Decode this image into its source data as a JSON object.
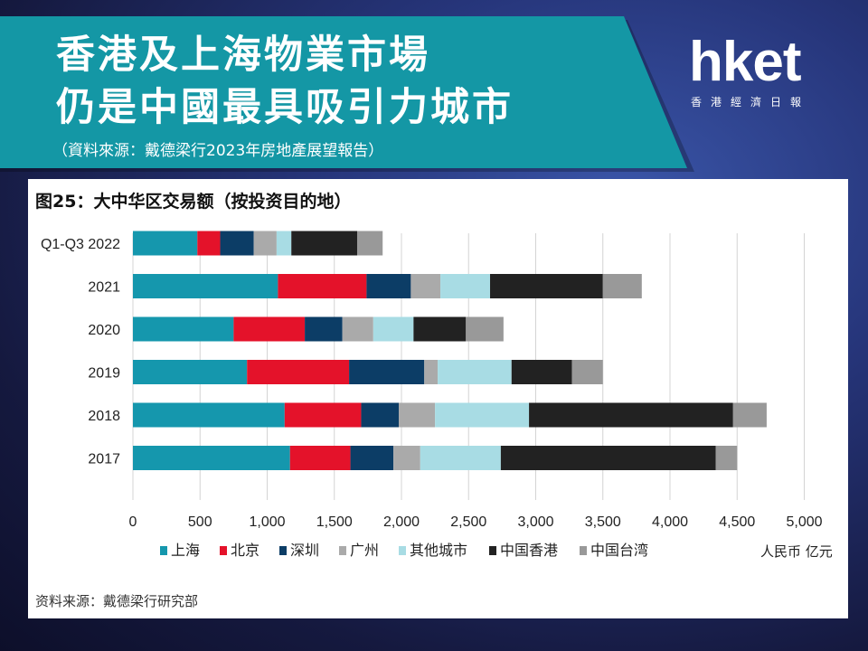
{
  "header": {
    "title_line1": "香港及上海物業市場",
    "title_line2": "仍是中國最具吸引力城市",
    "source": "（資料來源：戴德梁行2023年房地產展望報告）"
  },
  "logo": {
    "main": "hket",
    "sub": "香港經濟日報"
  },
  "chart_panel": {
    "title": "图25：大中华区交易额（按投资目的地）",
    "source_note": "资料来源：戴德梁行研究部",
    "unit_label": "人民币 亿元"
  },
  "chart_data": {
    "type": "bar",
    "orientation": "horizontal",
    "stacked": true,
    "categories": [
      "Q1-Q3 2022",
      "2021",
      "2020",
      "2019",
      "2018",
      "2017"
    ],
    "series": [
      {
        "name": "上海",
        "color": "#1597ad",
        "values": [
          480,
          1080,
          750,
          850,
          1130,
          1170
        ]
      },
      {
        "name": "北京",
        "color": "#e4122a",
        "values": [
          170,
          660,
          530,
          760,
          570,
          450
        ]
      },
      {
        "name": "深圳",
        "color": "#0c3d66",
        "values": [
          250,
          330,
          280,
          560,
          280,
          320
        ]
      },
      {
        "name": "广州",
        "color": "#aaaaaa",
        "values": [
          170,
          220,
          230,
          100,
          270,
          200
        ]
      },
      {
        "name": "其他城市",
        "color": "#a8dce4",
        "values": [
          110,
          370,
          300,
          550,
          700,
          600
        ]
      },
      {
        "name": "中国香港",
        "color": "#222222",
        "values": [
          490,
          840,
          390,
          450,
          1520,
          1600
        ]
      },
      {
        "name": "中国台湾",
        "color": "#999999",
        "values": [
          190,
          290,
          280,
          230,
          250,
          160
        ]
      }
    ],
    "x_ticks": [
      "0",
      "500",
      "1,000",
      "1,500",
      "2,000",
      "2,500",
      "3,000",
      "3,500",
      "4,000",
      "4,500",
      "5,000"
    ],
    "xlim": [
      0,
      5000
    ],
    "grid": true,
    "legend_position": "bottom"
  }
}
